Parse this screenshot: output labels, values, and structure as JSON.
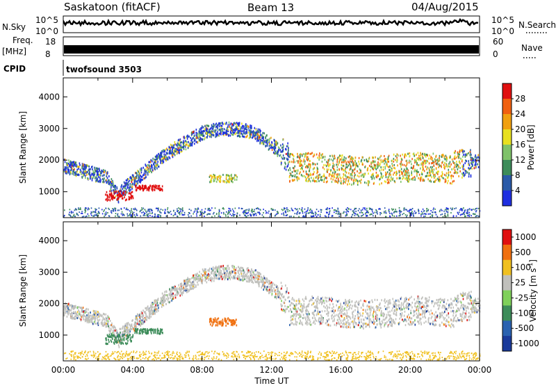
{
  "header": {
    "title": "Saskatoon (fitACF)",
    "beam": "Beam 13",
    "date": "04/Aug/2015"
  },
  "sidebar": {
    "nsky_label": "N.Sky",
    "freq_label": "Freq.",
    "freq_unit": "[MHz]",
    "cpid_label": "CPID",
    "nsearch_label": "N.Search",
    "nave_label": "Nave",
    "cpid_value": "twofsound 3503"
  },
  "small_axes": {
    "nsky_ticks": [
      "10^5",
      "10^0"
    ],
    "nsearch_ticks": [
      "10^5",
      "10^0"
    ],
    "freq_ticks": [
      "18",
      "8"
    ],
    "nave_ticks": [
      "60",
      "0"
    ]
  },
  "chart_data": [
    {
      "type": "heatmap",
      "title": "Power",
      "ylabel": "Slant Range [km]",
      "xlabel": "Time UT",
      "ylim": [
        180,
        4600
      ],
      "yticks": [
        "4000",
        "3000",
        "2000",
        "1000"
      ],
      "xticks": [
        "00:00",
        "04:00",
        "08:00",
        "12:00",
        "16:00",
        "20:00",
        "00:00"
      ],
      "colorbar_label": "Power [dB]",
      "colorbar_ticks": [
        "28",
        "24",
        "20",
        "16",
        "12",
        "8",
        "4"
      ],
      "colors": [
        "#1f2fe0",
        "#2a5aa8",
        "#3d8c5a",
        "#7fc26a",
        "#e8e020",
        "#f0a010",
        "#f06010",
        "#e01010"
      ]
    },
    {
      "type": "heatmap",
      "title": "Velocity",
      "ylabel": "Slant Range [km]",
      "xlabel": "Time UT",
      "ylim": [
        180,
        4600
      ],
      "yticks": [
        "4000",
        "3000",
        "2000",
        "1000"
      ],
      "xticks": [
        "00:00",
        "04:00",
        "08:00",
        "12:00",
        "16:00",
        "20:00",
        "00:00"
      ],
      "colorbar_label": "Velocity [m s",
      "colorbar_label_sup": "-1",
      "colorbar_label_end": "]",
      "colorbar_ticks": [
        "1000",
        "500",
        "100",
        "25",
        "-25",
        "-100",
        "-500",
        "-1000"
      ],
      "colors": [
        "#1a3a9a",
        "#2a62b0",
        "#3d8c5a",
        "#7fd05a",
        "#c0c0bc",
        "#f0c020",
        "#f07010",
        "#e01010"
      ]
    }
  ]
}
